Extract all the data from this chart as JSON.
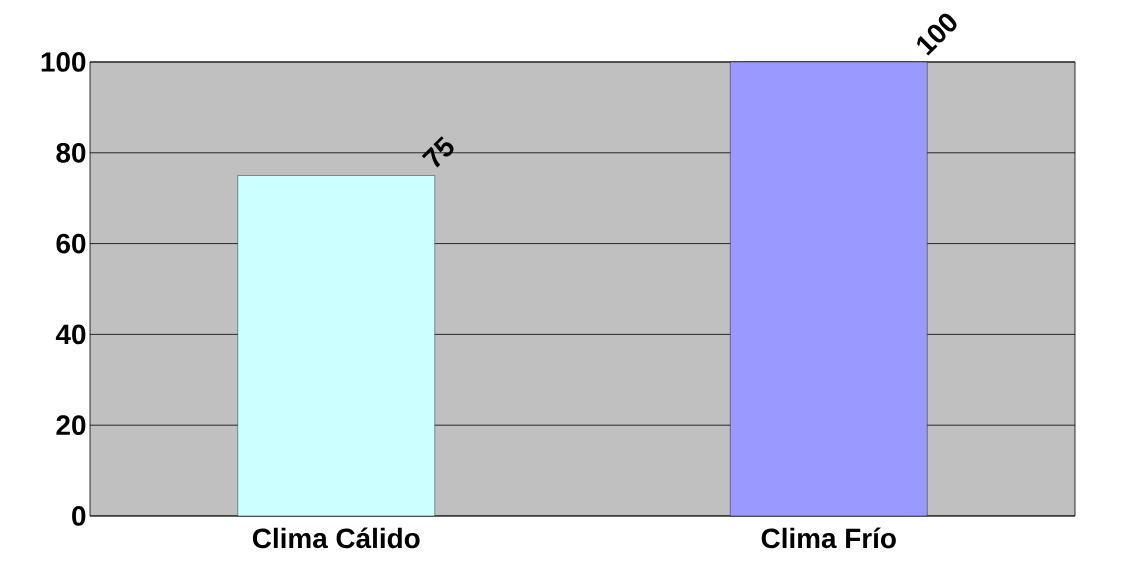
{
  "chart_data": {
    "type": "bar",
    "categories": [
      "Clima Cálido",
      "Clima Frío"
    ],
    "values": [
      75,
      100
    ],
    "colors": [
      "#ccffff",
      "#9999ff"
    ],
    "ylim": [
      0,
      100
    ],
    "yticks": [
      0,
      20,
      40,
      60,
      80,
      100
    ],
    "grid": "y",
    "data_labels": true
  }
}
